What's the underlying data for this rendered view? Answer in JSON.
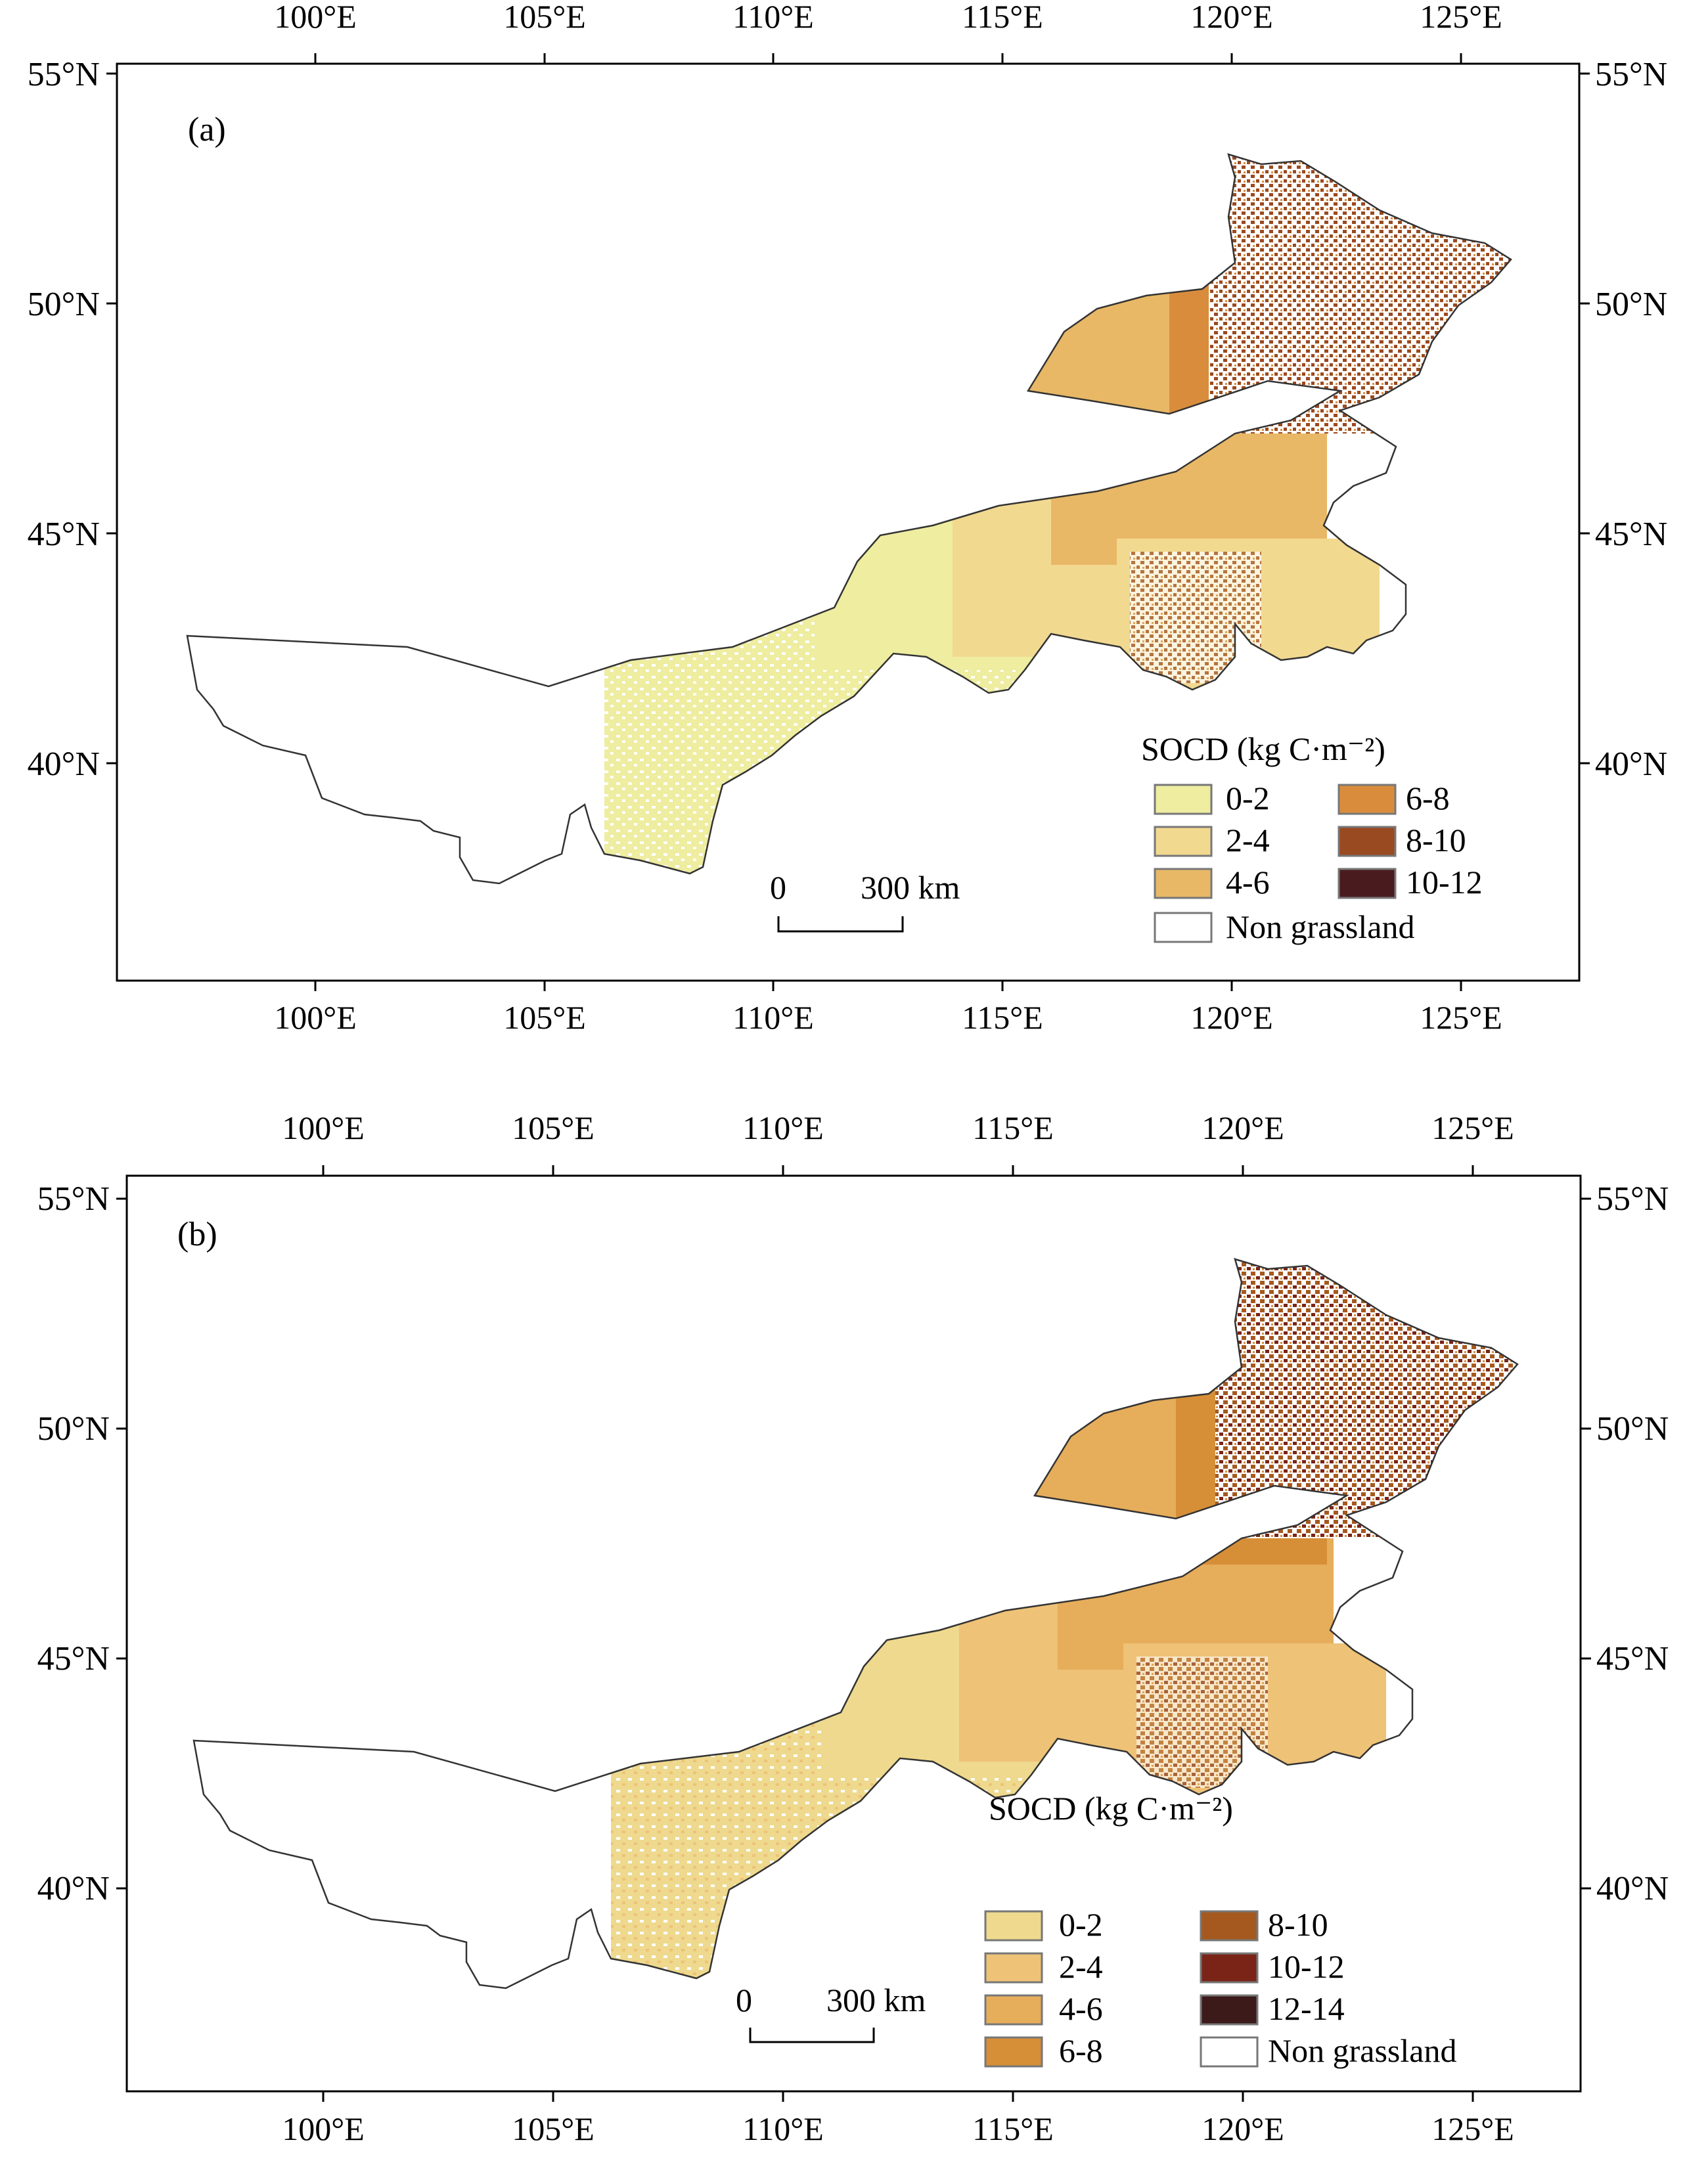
{
  "panels": [
    {
      "id": "a",
      "label": "(a)",
      "axes": {
        "lon_ticks": [
          "100°E",
          "105°E",
          "110°E",
          "115°E",
          "120°E",
          "125°E"
        ],
        "lat_ticks_left": [
          "55°N",
          "50°N",
          "45°N",
          "40°N"
        ],
        "lat_ticks_right": [
          "55°N",
          "50°N",
          "45°N",
          "40°N"
        ]
      },
      "legend": {
        "title": "SOCD (kg C·m⁻²)",
        "items": [
          {
            "label": "0-2",
            "color": "#eeeda0"
          },
          {
            "label": "2-4",
            "color": "#f2d990"
          },
          {
            "label": "4-6",
            "color": "#e8b866"
          },
          {
            "label": "6-8",
            "color": "#d98d3c"
          },
          {
            "label": "8-10",
            "color": "#9a4a20"
          },
          {
            "label": "10-12",
            "color": "#4a1b1e"
          },
          {
            "label": "Non grassland",
            "color": "#ffffff"
          }
        ]
      },
      "scale_bar": {
        "start": "0",
        "end": "300 km"
      }
    },
    {
      "id": "b",
      "label": "(b)",
      "axes": {
        "lon_ticks": [
          "100°E",
          "105°E",
          "110°E",
          "115°E",
          "120°E",
          "125°E"
        ],
        "lat_ticks_left": [
          "55°N",
          "50°N",
          "45°N",
          "40°N"
        ],
        "lat_ticks_right": [
          "55°N",
          "50°N",
          "45°N",
          "40°N"
        ]
      },
      "legend": {
        "title": "SOCD (kg C·m⁻²)",
        "items": [
          {
            "label": "0-2",
            "color": "#eed98e"
          },
          {
            "label": "2-4",
            "color": "#eec277"
          },
          {
            "label": "4-6",
            "color": "#e6ad5b"
          },
          {
            "label": "6-8",
            "color": "#d68f37"
          },
          {
            "label": "8-10",
            "color": "#a5591f"
          },
          {
            "label": "10-12",
            "color": "#7a2418"
          },
          {
            "label": "12-14",
            "color": "#3c1a1a"
          },
          {
            "label": "Non grassland",
            "color": "#ffffff"
          }
        ]
      },
      "scale_bar": {
        "start": "0",
        "end": "300 km"
      }
    }
  ]
}
